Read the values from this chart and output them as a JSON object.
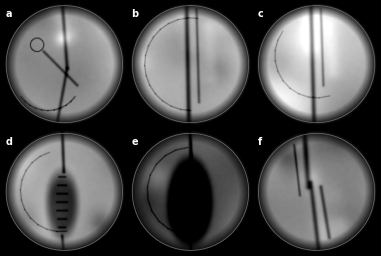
{
  "layout": {
    "rows": 2,
    "cols": 3
  },
  "labels": [
    "a",
    "b",
    "c",
    "d",
    "e",
    "f"
  ],
  "label_color": "white",
  "label_fontsize": 7,
  "background_color": "#000000",
  "figsize": [
    3.81,
    2.56
  ],
  "dpi": 100,
  "circle_linewidth": 0.6,
  "circle_color": "#666666",
  "base_gray": 0.62,
  "tissue_strength": 0.28
}
